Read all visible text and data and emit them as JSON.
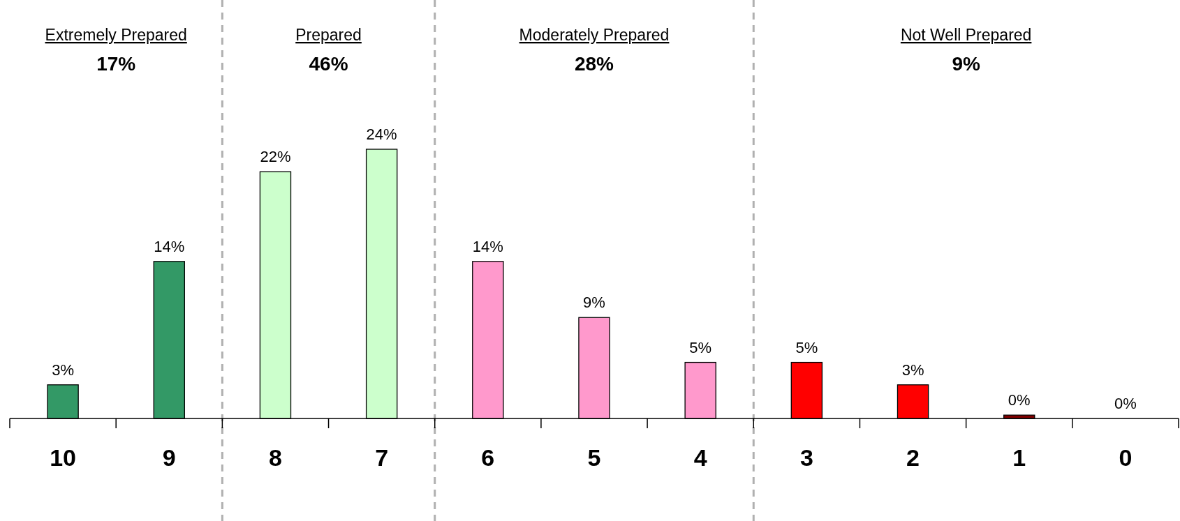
{
  "chart_data": {
    "type": "bar",
    "x": [
      10,
      9,
      8,
      7,
      6,
      5,
      4,
      3,
      2,
      1,
      0
    ],
    "values": [
      3,
      14,
      22,
      24,
      14,
      9,
      5,
      5,
      3,
      0.3,
      0
    ],
    "value_labels": [
      "3%",
      "14%",
      "22%",
      "24%",
      "14%",
      "9%",
      "5%",
      "5%",
      "3%",
      "0%",
      "0%"
    ],
    "colors": [
      "#339966",
      "#339966",
      "#ccffcc",
      "#ccffcc",
      "#ff99cc",
      "#ff99cc",
      "#ff99cc",
      "#ff0000",
      "#ff0000",
      "#800000",
      "#800000"
    ],
    "xlim": [
      10.5,
      -0.5
    ],
    "xticks": [
      10,
      9,
      8,
      7,
      6,
      5,
      4,
      3,
      2,
      1,
      0,
      {
        "value": 10.5,
        "label": null
      },
      {
        "value": 9.5,
        "label": null
      },
      {
        "value": 8.5,
        "label": null
      },
      {
        "value": 7.5,
        "label": null
      },
      {
        "value": 6.5,
        "label": null
      },
      {
        "value": 5.5,
        "label": null
      },
      {
        "value": 4.5,
        "label": null
      },
      {
        "value": 3.5,
        "label": null
      },
      {
        "value": 2.5,
        "label": null
      },
      {
        "value": 1.5,
        "label": null
      },
      {
        "value": 0.5,
        "label": null
      },
      {
        "value": -0.5,
        "label": null
      }
    ],
    "ref_lines": [
      {
        "axis": "x",
        "value": 8.5,
        "color": "#b0b0b0",
        "line_style": "dashed"
      },
      {
        "axis": "x",
        "value": 6.5,
        "color": "#b0b0b0",
        "line_style": "dashed"
      },
      {
        "axis": "x",
        "value": 3.5,
        "color": "#b0b0b0",
        "line_style": "dashed"
      }
    ],
    "annotations": [
      "Extremely Prepared",
      "17%",
      "Prepared",
      "46%",
      "Moderately Prepared",
      "28%",
      "Not Well Prepared",
      "9%"
    ]
  }
}
